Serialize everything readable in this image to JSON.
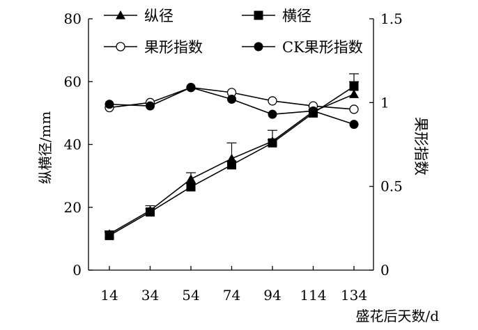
{
  "chart_data": {
    "type": "line",
    "x": [
      14,
      34,
      54,
      74,
      94,
      114,
      134
    ],
    "xlabel": "盛花后天数/d",
    "ylabel_left": "纵横径/mm",
    "ylabel_right": "果形指数",
    "ylim_left": [
      0,
      80
    ],
    "ylim_right": [
      0,
      1.5
    ],
    "yticks_left": [
      "0",
      "20",
      "40",
      "60",
      "80"
    ],
    "yticks_right": [
      "0",
      "0.5",
      "1",
      "1.5"
    ],
    "xticks": [
      "14",
      "34",
      "54",
      "74",
      "94",
      "114",
      "134"
    ],
    "grid": false,
    "legend_position": "top",
    "series": [
      {
        "name": "纵径",
        "axis": "left",
        "marker": "triangle",
        "values": [
          11.5,
          19,
          29,
          35.5,
          41,
          50.5,
          56
        ],
        "error": [
          1,
          1.5,
          2,
          5,
          3.5,
          1.5,
          6.5
        ]
      },
      {
        "name": "横径",
        "axis": "left",
        "marker": "square",
        "values": [
          11,
          18.5,
          26.5,
          33.5,
          40.5,
          50,
          58.5
        ],
        "error": [
          1,
          1,
          1,
          1,
          1,
          1,
          1.5
        ]
      },
      {
        "name": "果形指数",
        "axis": "right",
        "marker": "open-circle",
        "values": [
          0.97,
          1.0,
          1.09,
          1.06,
          1.01,
          0.98,
          0.96
        ]
      },
      {
        "name": "CK果形指数",
        "axis": "right",
        "marker": "filled-circle",
        "values": [
          0.99,
          0.98,
          1.09,
          1.02,
          0.93,
          0.95,
          0.87
        ]
      }
    ]
  }
}
